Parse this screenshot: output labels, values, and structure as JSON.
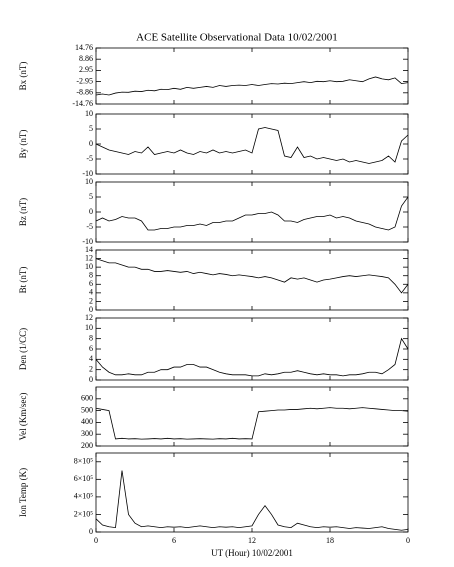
{
  "chart_data": [
    {
      "type": "line",
      "title": "ACE Satellite Observational Data   10/02/2001",
      "ylabel": "Bx (nT)",
      "x": [
        0,
        0.5,
        1,
        1.5,
        2,
        2.5,
        3,
        3.5,
        4,
        4.5,
        5,
        5.5,
        6,
        6.5,
        7,
        7.5,
        8,
        8.5,
        9,
        9.5,
        10,
        10.5,
        11,
        11.5,
        12,
        12.5,
        13,
        13.5,
        14,
        14.5,
        15,
        15.5,
        16,
        16.5,
        17,
        17.5,
        18,
        18.5,
        19,
        19.5,
        20,
        20.5,
        21,
        21.5,
        22,
        22.5,
        23,
        23.5,
        24
      ],
      "values": [
        -10,
        -9.5,
        -10,
        -9,
        -8.5,
        -8.6,
        -8,
        -8.2,
        -7.5,
        -7.8,
        -7,
        -7.2,
        -6.5,
        -7,
        -6,
        -6.5,
        -6,
        -5.5,
        -6,
        -5,
        -5.5,
        -5,
        -4.8,
        -5,
        -4.5,
        -5,
        -4.5,
        -4,
        -4.2,
        -3.8,
        -4,
        -3.5,
        -3,
        -3.5,
        -2.8,
        -3,
        -2.5,
        -3,
        -2.8,
        -2,
        -2.5,
        -3,
        -1.5,
        -0.5,
        -1.5,
        -2,
        -1,
        -4,
        -3.5
      ],
      "xlim": [
        0,
        24
      ],
      "xticks": [
        0,
        6,
        12,
        18,
        {
          "value": 24,
          "label": "0"
        }
      ],
      "ylim": [
        -14.76,
        14.76
      ],
      "yticks": [
        -14.76,
        -8.86,
        -2.95,
        2.95,
        8.86,
        14.76
      ],
      "color": "#000000"
    },
    {
      "type": "line",
      "ylabel": "By (nT)",
      "x": [
        0,
        0.5,
        1,
        1.5,
        2,
        2.5,
        3,
        3.5,
        4,
        4.5,
        5,
        5.5,
        6,
        6.5,
        7,
        7.5,
        8,
        8.5,
        9,
        9.5,
        10,
        10.5,
        11,
        11.5,
        12,
        12.5,
        13,
        13.5,
        14,
        14.5,
        15,
        15.5,
        16,
        16.5,
        17,
        17.5,
        18,
        18.5,
        19,
        19.5,
        20,
        20.5,
        21,
        21.5,
        22,
        22.5,
        23,
        23.5,
        24
      ],
      "values": [
        0,
        -1,
        -2,
        -2.5,
        -3,
        -3.5,
        -2.5,
        -3,
        -1,
        -3.5,
        -3,
        -2.5,
        -3,
        -2,
        -3,
        -3.5,
        -2.5,
        -3,
        -2,
        -3,
        -2.5,
        -3,
        -2.5,
        -2,
        -3,
        5,
        5.5,
        5,
        4.5,
        -4,
        -4.5,
        -1,
        -4.5,
        -4,
        -5,
        -4.5,
        -5,
        -5.5,
        -5,
        -6,
        -5.5,
        -6,
        -6.5,
        -6,
        -5.5,
        -4,
        -6,
        1,
        3
      ],
      "xlim": [
        0,
        24
      ],
      "xticks": [
        0,
        6,
        12,
        18,
        {
          "value": 24,
          "label": "0"
        }
      ],
      "ylim": [
        -10,
        10
      ],
      "yticks": [
        -10,
        -5,
        0,
        5,
        10
      ],
      "color": "#000000"
    },
    {
      "type": "line",
      "ylabel": "Bz (nT)",
      "x": [
        0,
        0.5,
        1,
        1.5,
        2,
        2.5,
        3,
        3.5,
        4,
        4.5,
        5,
        5.5,
        6,
        6.5,
        7,
        7.5,
        8,
        8.5,
        9,
        9.5,
        10,
        10.5,
        11,
        11.5,
        12,
        12.5,
        13,
        13.5,
        14,
        14.5,
        15,
        15.5,
        16,
        16.5,
        17,
        17.5,
        18,
        18.5,
        19,
        19.5,
        20,
        20.5,
        21,
        21.5,
        22,
        22.5,
        23,
        23.5,
        24
      ],
      "values": [
        -3,
        -2,
        -3,
        -2.5,
        -1.5,
        -2,
        -2,
        -3,
        -6,
        -6,
        -5.5,
        -5.5,
        -5,
        -5,
        -4.5,
        -4.5,
        -4,
        -4.5,
        -3.5,
        -3.5,
        -3,
        -3,
        -2,
        -1,
        -1,
        -0.5,
        -0.5,
        0,
        -1,
        -3,
        -3,
        -3.5,
        -2.5,
        -2,
        -1.5,
        -1.5,
        -1,
        -2,
        -1.5,
        -2,
        -3,
        -3.5,
        -4,
        -5,
        -5.5,
        -6,
        -5,
        2,
        5
      ],
      "xlim": [
        0,
        24
      ],
      "xticks": [
        0,
        6,
        12,
        18,
        {
          "value": 24,
          "label": "0"
        }
      ],
      "ylim": [
        -10,
        10
      ],
      "yticks": [
        -10,
        -5,
        0,
        5,
        10
      ],
      "color": "#000000"
    },
    {
      "type": "line",
      "ylabel": "Bt (nT)",
      "x": [
        0,
        0.5,
        1,
        1.5,
        2,
        2.5,
        3,
        3.5,
        4,
        4.5,
        5,
        5.5,
        6,
        6.5,
        7,
        7.5,
        8,
        8.5,
        9,
        9.5,
        10,
        10.5,
        11,
        11.5,
        12,
        12.5,
        13,
        13.5,
        14,
        14.5,
        15,
        15.5,
        16,
        16.5,
        17,
        17.5,
        18,
        18.5,
        19,
        19.5,
        20,
        20.5,
        21,
        21.5,
        22,
        22.5,
        23,
        23.5,
        24
      ],
      "values": [
        12,
        11.5,
        11,
        11,
        10.5,
        10,
        10,
        9.5,
        9.5,
        9,
        9,
        9.2,
        9,
        8.8,
        9,
        8.5,
        8.8,
        8.5,
        8.2,
        8.5,
        8.3,
        8,
        8.2,
        8,
        7.8,
        7.5,
        7.8,
        7.5,
        7,
        6.5,
        7.5,
        7.2,
        7.5,
        7,
        6.5,
        7,
        7.2,
        7.5,
        7.8,
        8,
        7.8,
        8,
        8.2,
        8,
        7.8,
        7.5,
        6,
        4,
        6
      ],
      "xlim": [
        0,
        24
      ],
      "xticks": [
        0,
        6,
        12,
        18,
        {
          "value": 24,
          "label": "0"
        }
      ],
      "ylim": [
        0,
        14
      ],
      "yticks": [
        0,
        2,
        4,
        6,
        8,
        10,
        12,
        14
      ],
      "color": "#000000"
    },
    {
      "type": "line",
      "ylabel": "Den (1/CC)",
      "x": [
        0,
        0.5,
        1,
        1.5,
        2,
        2.5,
        3,
        3.5,
        4,
        4.5,
        5,
        5.5,
        6,
        6.5,
        7,
        7.5,
        8,
        8.5,
        9,
        9.5,
        10,
        10.5,
        11,
        11.5,
        12,
        12.5,
        13,
        13.5,
        14,
        14.5,
        15,
        15.5,
        16,
        16.5,
        17,
        17.5,
        18,
        18.5,
        19,
        19.5,
        20,
        20.5,
        21,
        21.5,
        22,
        22.5,
        23,
        23.5,
        24
      ],
      "values": [
        4,
        2.5,
        1.5,
        1,
        1,
        1.2,
        1,
        1,
        1.5,
        1.5,
        2,
        2,
        2.5,
        2.5,
        3,
        3,
        2.5,
        2.5,
        2,
        1.5,
        1.2,
        1,
        1,
        1,
        0.8,
        0.8,
        1.2,
        1,
        1.2,
        1.5,
        1.5,
        1.8,
        1.5,
        1.2,
        1,
        1.2,
        1,
        1,
        0.8,
        1,
        1,
        1.2,
        1.5,
        1.5,
        1.2,
        2,
        3,
        8,
        6
      ],
      "xlim": [
        0,
        24
      ],
      "xticks": [
        0,
        6,
        12,
        18,
        {
          "value": 24,
          "label": "0"
        }
      ],
      "ylim": [
        0,
        12
      ],
      "yticks": [
        0,
        2,
        4,
        6,
        8,
        10,
        12
      ],
      "color": "#000000"
    },
    {
      "type": "line",
      "ylabel": "Vel (Km/sec)",
      "x": [
        0,
        0.5,
        1,
        1.5,
        2,
        2.5,
        3,
        3.5,
        4,
        4.5,
        5,
        5.5,
        6,
        6.5,
        7,
        7.5,
        8,
        8.5,
        9,
        9.5,
        10,
        10.5,
        11,
        11.5,
        12,
        12.5,
        13,
        13.5,
        14,
        14.5,
        15,
        15.5,
        16,
        16.5,
        17,
        17.5,
        18,
        18.5,
        19,
        19.5,
        20,
        20.5,
        21,
        21.5,
        22,
        22.5,
        23,
        23.5,
        24
      ],
      "values": [
        520,
        510,
        500,
        260,
        265,
        260,
        262,
        258,
        260,
        263,
        260,
        265,
        260,
        262,
        258,
        260,
        262,
        260,
        258,
        262,
        260,
        265,
        260,
        262,
        260,
        490,
        495,
        500,
        505,
        505,
        510,
        510,
        515,
        520,
        515,
        520,
        525,
        520,
        520,
        515,
        520,
        525,
        520,
        515,
        510,
        505,
        500,
        500,
        495
      ],
      "xlim": [
        0,
        24
      ],
      "xticks": [
        0,
        6,
        12,
        18,
        {
          "value": 24,
          "label": "0"
        }
      ],
      "ylim": [
        200,
        700
      ],
      "yticks": [
        200,
        300,
        400,
        500,
        600
      ],
      "color": "#000000"
    },
    {
      "type": "line",
      "ylabel": "Ion Temp (K)",
      "xlabel": "UT (Hour)  10/02/2001",
      "x": [
        0,
        0.5,
        1,
        1.5,
        2,
        2.5,
        3,
        3.5,
        4,
        4.5,
        5,
        5.5,
        6,
        6.5,
        7,
        7.5,
        8,
        8.5,
        9,
        9.5,
        10,
        10.5,
        11,
        11.5,
        12,
        12.5,
        13,
        13.5,
        14,
        14.5,
        15,
        15.5,
        16,
        16.5,
        17,
        17.5,
        18,
        18.5,
        19,
        19.5,
        20,
        20.5,
        21,
        21.5,
        22,
        22.5,
        23,
        23.5,
        24
      ],
      "values": [
        150000,
        80000,
        60000,
        50000,
        700000,
        200000,
        100000,
        60000,
        70000,
        60000,
        50000,
        60000,
        55000,
        60000,
        50000,
        60000,
        70000,
        60000,
        50000,
        60000,
        55000,
        60000,
        50000,
        60000,
        70000,
        200000,
        300000,
        200000,
        80000,
        60000,
        50000,
        100000,
        80000,
        60000,
        50000,
        60000,
        55000,
        60000,
        50000,
        40000,
        50000,
        45000,
        40000,
        50000,
        60000,
        40000,
        30000,
        20000,
        30000
      ],
      "xlim": [
        0,
        24
      ],
      "xticks": [
        0,
        6,
        12,
        18,
        {
          "value": 24,
          "label": "0"
        }
      ],
      "ylim": [
        0,
        900000
      ],
      "yticks": [
        0,
        {
          "value": 200000,
          "label": "2×10⁵"
        },
        {
          "value": 400000,
          "label": "4×10⁵"
        },
        {
          "value": 600000,
          "label": "6×10⁵"
        },
        {
          "value": 800000,
          "label": "8×10⁵"
        }
      ],
      "color": "#000000"
    }
  ]
}
